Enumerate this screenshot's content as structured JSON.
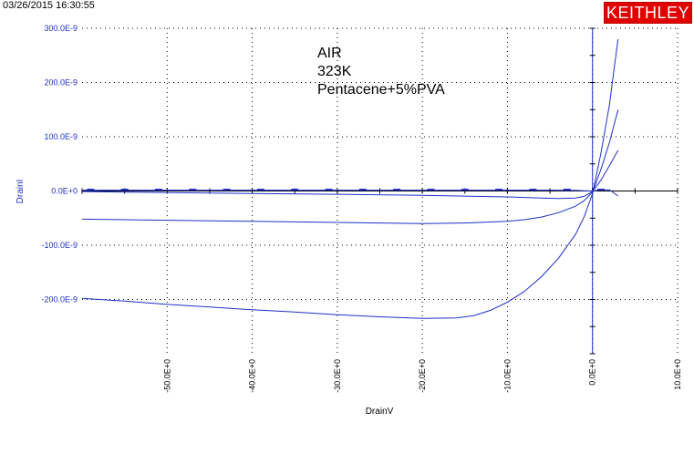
{
  "header": {
    "timestamp": "03/26/2015 16:30:55",
    "logo_text": "KEITHLEY",
    "logo_color": "#e00000"
  },
  "chart_data": {
    "type": "line",
    "title": "",
    "xlabel": "DrainV",
    "ylabel": "DrainI",
    "xlim": [
      -60,
      10
    ],
    "ylim": [
      -3e-07,
      3e-07
    ],
    "grid": true,
    "line_color": "#1f2fc8",
    "x_ticks": [
      -50,
      -40,
      -30,
      -20,
      -10,
      0,
      10
    ],
    "x_tick_labels": [
      "-50.0E+0",
      "-40.0E+0",
      "-30.0E+0",
      "-20.0E+0",
      "-10.0E+0",
      "0.0E+0",
      "10.0E+0"
    ],
    "y_ticks": [
      3e-07,
      2e-07,
      1e-07,
      0,
      -1e-07,
      -2e-07
    ],
    "y_tick_labels": [
      "300.0E-9",
      "200.0E-9",
      "100.0E-9",
      "0.0E+0",
      "-100.0E-9",
      "-200.0E-9"
    ],
    "annotations": [
      "AIR",
      "323K",
      "Pentacene+5%PVA"
    ],
    "series": [
      {
        "x": [
          -60,
          -55,
          -50,
          -45,
          -40,
          -35,
          -30,
          -25,
          -20,
          -16,
          -14,
          -12,
          -10,
          -8,
          -6,
          -4,
          -2,
          -1,
          0,
          1,
          2,
          2.5,
          3
        ],
        "y": [
          -1.98e-07,
          -2.03e-07,
          -2.09e-07,
          -2.14e-07,
          -2.19e-07,
          -2.23e-07,
          -2.28e-07,
          -2.32e-07,
          -2.35e-07,
          -2.34e-07,
          -2.3e-07,
          -2.2e-07,
          -2.05e-07,
          -1.85e-07,
          -1.58e-07,
          -1.24e-07,
          -8e-08,
          -4.8e-08,
          -5e-09,
          7e-08,
          1.6e-07,
          2.2e-07,
          2.8e-07
        ]
      },
      {
        "x": [
          -60,
          -50,
          -40,
          -30,
          -20,
          -15,
          -10,
          -8,
          -6,
          -4,
          -2,
          -1,
          0,
          1,
          2,
          3
        ],
        "y": [
          -5.2e-08,
          -5.4e-08,
          -5.6e-08,
          -5.8e-08,
          -6e-08,
          -5.9e-08,
          -5.6e-08,
          -5.3e-08,
          -4.8e-08,
          -4e-08,
          -2.8e-08,
          -1.8e-08,
          -2e-09,
          4e-08,
          9e-08,
          1.5e-07
        ]
      },
      {
        "x": [
          -60,
          -50,
          -40,
          -30,
          -20,
          -10,
          -6,
          -4,
          -2,
          -1,
          0,
          1,
          2,
          3
        ],
        "y": [
          -1e-09,
          -3e-09,
          -4.5e-09,
          -6e-09,
          -8e-09,
          -1.1e-08,
          -1.3e-08,
          -1.4e-08,
          -1.3e-08,
          -1e-08,
          -1e-09,
          2e-08,
          4.7e-08,
          7.5e-08
        ]
      },
      {
        "x": [
          -60,
          -40,
          -20,
          -10,
          -5,
          -2,
          -1,
          0,
          1,
          2,
          3
        ],
        "y": [
          1.5e-09,
          1.5e-09,
          1.5e-09,
          1.5e-09,
          1.5e-09,
          1e-09,
          5e-10,
          0,
          2e-09,
          2e-09,
          -9e-09
        ]
      }
    ]
  }
}
